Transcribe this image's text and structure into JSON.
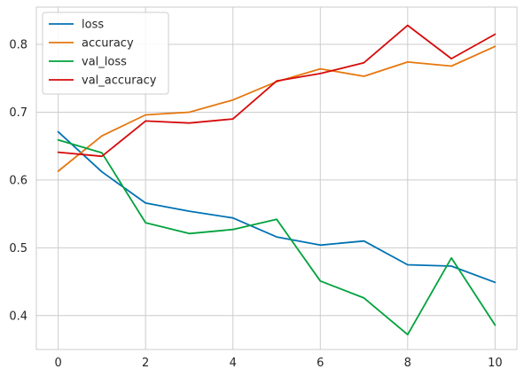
{
  "chart_data": {
    "type": "line",
    "title": "",
    "xlabel": "",
    "ylabel": "",
    "x": [
      0,
      1,
      2,
      3,
      4,
      5,
      6,
      7,
      8,
      9,
      10
    ],
    "xlim": [
      -0.5,
      10.5
    ],
    "ylim": [
      0.35,
      0.855
    ],
    "xticks": [
      0,
      2,
      4,
      6,
      8,
      10
    ],
    "yticks": [
      0.4,
      0.5,
      0.6,
      0.7,
      0.8
    ],
    "xtick_labels": [
      "0",
      "2",
      "4",
      "6",
      "8",
      "10"
    ],
    "ytick_labels": [
      "0.4",
      "0.5",
      "0.6",
      "0.7",
      "0.8"
    ],
    "grid": true,
    "legend_position": "top-left",
    "series": [
      {
        "name": "loss",
        "color": "#0072b2",
        "values": [
          0.671,
          0.612,
          0.566,
          0.554,
          0.544,
          0.516,
          0.504,
          0.51,
          0.475,
          0.473,
          0.449
        ]
      },
      {
        "name": "accuracy",
        "color": "#e6770f",
        "values": [
          0.613,
          0.665,
          0.696,
          0.7,
          0.718,
          0.745,
          0.764,
          0.753,
          0.774,
          0.768,
          0.797
        ]
      },
      {
        "name": "val_loss",
        "color": "#00a23d",
        "values": [
          0.659,
          0.64,
          0.537,
          0.521,
          0.527,
          0.542,
          0.451,
          0.426,
          0.372,
          0.485,
          0.386
        ]
      },
      {
        "name": "val_accuracy",
        "color": "#d50b0b",
        "values": [
          0.641,
          0.635,
          0.687,
          0.684,
          0.69,
          0.746,
          0.757,
          0.773,
          0.828,
          0.779,
          0.815
        ]
      }
    ]
  }
}
